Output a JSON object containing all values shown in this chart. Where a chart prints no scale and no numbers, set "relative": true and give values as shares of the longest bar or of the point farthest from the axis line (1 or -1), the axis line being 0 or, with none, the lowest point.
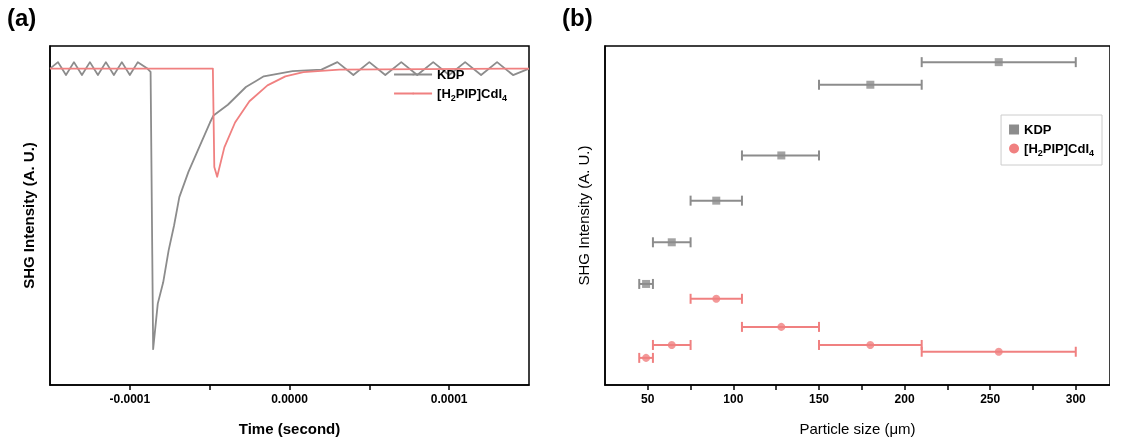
{
  "chart_data": [
    {
      "type": "line",
      "title": "(a)",
      "xlabel": "Time (second)",
      "ylabel": "SHG Intensity (A. U.)",
      "relative": true,
      "xlim": [
        -0.00015,
        0.00015
      ],
      "xticks": [
        -0.0001,
        {
          "value": -5e-05,
          "label": null
        },
        {
          "value": 0,
          "label": "0.0000"
        },
        {
          "value": 5e-05,
          "label": null
        },
        0.0001
      ],
      "tick_labels": "x",
      "grid": false,
      "legend": "top right",
      "line_style": "solid",
      "marker": "none",
      "series": [
        {
          "name": "KDP",
          "color": "#8c8c8c",
          "x": [
            -0.00015,
            -0.000145,
            -0.00014,
            -0.000135,
            -0.00013,
            -0.000125,
            -0.00012,
            -0.000115,
            -0.00011,
            -0.000105,
            -0.0001,
            -9.5e-05,
            -8.9e-05,
            -8.7e-05,
            -8.54e-05,
            -8.25e-05,
            -7.91e-05,
            -7.57e-05,
            -7.23e-05,
            -6.9e-05,
            -6.33e-05,
            -5.66e-05,
            -4.98e-05,
            -4.76e-05,
            -3.86e-05,
            -2.73e-05,
            -1.61e-05,
            1.9e-06,
            2e-05,
            3e-05,
            4e-05,
            5e-05,
            6e-05,
            7e-05,
            8e-05,
            9e-05,
            0.0001,
            0.00011,
            0.00012,
            0.00013,
            0.00014,
            0.00015
          ],
          "values": [
            0.98,
            1.0,
            0.96,
            1.0,
            0.96,
            1.0,
            0.96,
            1.0,
            0.96,
            1.0,
            0.96,
            1.0,
            0.98,
            0.97,
            0.111,
            0.252,
            0.318,
            0.417,
            0.494,
            0.582,
            0.66,
            0.736,
            0.813,
            0.835,
            0.868,
            0.923,
            0.956,
            0.972,
            0.977,
            1.0,
            0.96,
            1.0,
            0.96,
            1.0,
            0.96,
            1.0,
            0.96,
            1.0,
            0.96,
            1.0,
            0.96,
            0.98
          ]
        },
        {
          "name": "[H$_{2}$PIP]CdI$_{4}$",
          "color": "#f08080",
          "x": [
            -0.00015,
            -4.8e-05,
            -4.71e-05,
            -4.53e-05,
            -4.08e-05,
            -3.41e-05,
            -2.51e-05,
            -1.38e-05,
            -2.6e-06,
            8.7e-06,
            3.12e-05,
            0.00015
          ],
          "values": [
            0.98,
            0.98,
            0.675,
            0.645,
            0.736,
            0.813,
            0.879,
            0.928,
            0.956,
            0.969,
            0.977,
            0.98
          ]
        }
      ]
    },
    {
      "type": "scatter",
      "title": "(b)",
      "xlabel": "Particle size (μm)",
      "ylabel": "SHG Intensity (A. U.)",
      "relative": true,
      "xlim": [
        25,
        320
      ],
      "xticks": [
        50,
        {
          "value": 75,
          "label": null
        },
        100,
        {
          "value": 125,
          "label": null
        },
        150,
        {
          "value": 175,
          "label": null
        },
        200,
        {
          "value": 225,
          "label": null
        },
        250,
        {
          "value": 275,
          "label": null
        },
        300
      ],
      "tick_labels": "x",
      "grid": false,
      "legend": "right",
      "series": [
        {
          "name": "KDP",
          "color": "#8c8c8c",
          "marker": "square",
          "x": [
            49,
            64,
            90,
            128,
            180,
            255
          ],
          "values": [
            0.313,
            0.442,
            0.571,
            0.711,
            0.93,
            1.0
          ],
          "xerrors": [
            [
              45,
              53
            ],
            [
              53,
              75
            ],
            [
              75,
              105
            ],
            [
              105,
              150
            ],
            [
              150,
              210
            ],
            [
              210,
              300
            ]
          ]
        },
        {
          "name": "[H$_{2}$PIP]CdI$_{4}$",
          "color": "#f08080",
          "marker": "circle",
          "x": [
            49,
            64,
            90,
            128,
            180,
            255
          ],
          "values": [
            0.084,
            0.124,
            0.267,
            0.18,
            0.124,
            0.103
          ],
          "xerrors": [
            [
              45,
              53
            ],
            [
              53,
              75
            ],
            [
              75,
              105
            ],
            [
              105,
              150
            ],
            [
              150,
              210
            ],
            [
              210,
              300
            ]
          ]
        }
      ]
    }
  ]
}
